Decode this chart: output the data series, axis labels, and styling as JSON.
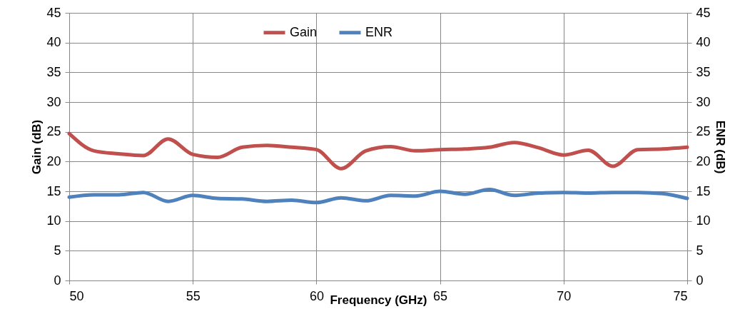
{
  "chart_data": {
    "type": "line",
    "xlabel": "Frequency (GHz)",
    "ylabel": "Gain (dB)",
    "y2label": "ENR (dB)",
    "x": [
      50,
      51,
      52,
      53,
      54,
      55,
      56,
      57,
      58,
      59,
      60,
      61,
      62,
      63,
      64,
      65,
      66,
      67,
      68,
      69,
      70,
      71,
      72,
      73,
      74,
      75
    ],
    "series": [
      {
        "name": "Gain",
        "color": "#c0504d",
        "values": [
          24.7,
          21.8,
          21.3,
          21.0,
          23.8,
          21.2,
          20.7,
          22.4,
          22.7,
          22.4,
          22.0,
          18.8,
          21.8,
          22.5,
          21.8,
          22.0,
          22.1,
          22.4,
          23.2,
          22.3,
          21.1,
          21.9,
          19.2,
          22.0,
          22.1,
          22.4
        ]
      },
      {
        "name": "ENR",
        "color": "#4f81bd",
        "axis": "y2",
        "values": [
          14.0,
          14.4,
          14.4,
          14.8,
          13.3,
          14.3,
          13.8,
          13.7,
          13.3,
          13.5,
          13.1,
          13.9,
          13.4,
          14.3,
          14.2,
          15.0,
          14.5,
          15.3,
          14.3,
          14.7,
          14.8,
          14.7,
          14.8,
          14.8,
          14.6,
          13.8
        ]
      }
    ],
    "xlim": [
      50,
      75
    ],
    "xticks": [
      50,
      55,
      60,
      65,
      70,
      75
    ],
    "ylim": [
      0,
      45
    ],
    "yticks": [
      0,
      5,
      10,
      15,
      20,
      25,
      30,
      35,
      40,
      45
    ],
    "y2lim": [
      0,
      45
    ],
    "y2ticks": [
      0,
      5,
      10,
      15,
      20,
      25,
      30,
      35,
      40,
      45
    ],
    "grid": true,
    "legend": "top",
    "marker": "none",
    "line_style": "solid"
  }
}
